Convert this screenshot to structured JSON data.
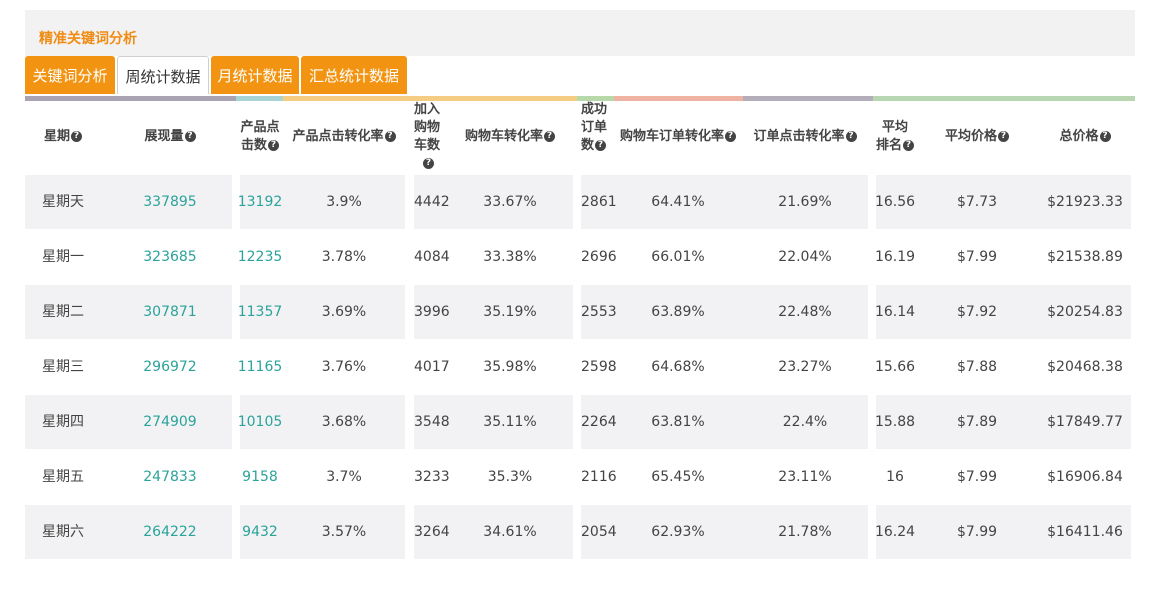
{
  "panel": {
    "title": "精准关键词分析"
  },
  "tabs": [
    "关键词分析",
    "周统计数据",
    "月统计数据",
    "汇总统计数据"
  ],
  "active_tab": "周统计数据",
  "colors": {
    "accent": "#f29412",
    "teal": "#2aa39a",
    "stripes": [
      "#a9a3b3",
      "#a9d4d6",
      "#f4cd83",
      "#b7d8a9",
      "#f0b3a3",
      "#b3adba",
      "#b9d6b3"
    ]
  },
  "table": {
    "headers": [
      [
        "星期"
      ],
      [
        "展现量"
      ],
      [
        "产品点",
        "击数"
      ],
      [
        "产品点击转化率"
      ],
      [
        "加入",
        "购物",
        "车数"
      ],
      [
        "购物车转化率"
      ],
      [
        "成功",
        "订单",
        "数"
      ],
      [
        "购物车订单转化率"
      ],
      [
        "订单点击转化率"
      ],
      [
        "平均",
        "排名"
      ],
      [
        "平均价格"
      ],
      [
        "总价格"
      ]
    ],
    "rows": [
      [
        "星期天",
        "337895",
        "13192",
        "3.9%",
        "4442",
        "33.67%",
        "2861",
        "64.41%",
        "21.69%",
        "16.56",
        "$7.73",
        "$21923.33"
      ],
      [
        "星期一",
        "323685",
        "12235",
        "3.78%",
        "4084",
        "33.38%",
        "2696",
        "66.01%",
        "22.04%",
        "16.19",
        "$7.99",
        "$21538.89"
      ],
      [
        "星期二",
        "307871",
        "11357",
        "3.69%",
        "3996",
        "35.19%",
        "2553",
        "63.89%",
        "22.48%",
        "16.14",
        "$7.92",
        "$20254.83"
      ],
      [
        "星期三",
        "296972",
        "11165",
        "3.76%",
        "4017",
        "35.98%",
        "2598",
        "64.68%",
        "23.27%",
        "15.66",
        "$7.88",
        "$20468.38"
      ],
      [
        "星期四",
        "274909",
        "10105",
        "3.68%",
        "3548",
        "35.11%",
        "2264",
        "63.81%",
        "22.4%",
        "15.88",
        "$7.89",
        "$17849.77"
      ],
      [
        "星期五",
        "247833",
        "9158",
        "3.7%",
        "3233",
        "35.3%",
        "2116",
        "65.45%",
        "23.11%",
        "16",
        "$7.99",
        "$16906.84"
      ],
      [
        "星期六",
        "264222",
        "9432",
        "3.57%",
        "3264",
        "34.61%",
        "2054",
        "62.93%",
        "21.78%",
        "16.24",
        "$7.99",
        "$16411.46"
      ]
    ]
  }
}
